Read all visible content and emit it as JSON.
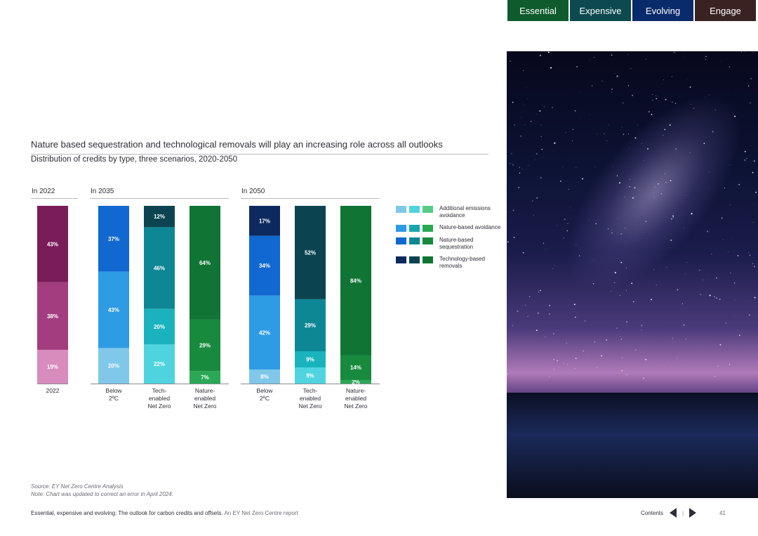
{
  "tabs": [
    "Essential",
    "Expensive",
    "Evolving",
    "Engage"
  ],
  "tab_colors": [
    "#0f5b2e",
    "#0c4a4f",
    "#0a2b6b",
    "#3a2222"
  ],
  "title": "Nature based sequestration and technological removals will play an increasing role across all outlooks",
  "subtitle": "Distribution of credits by type, three scenarios, 2020-2050",
  "footer": {
    "source": "Source: EY Net Zero Centre Analysis",
    "note": "Note: Chart was updated to correct an error in April 2024.",
    "report_title": "Essential, expensive and evolving: The outlook for carbon credits and offsets.",
    "report_subtitle": "An EY Net Zero Centre report",
    "contents": "Contents",
    "separator": "|",
    "page": "41"
  },
  "legend": [
    {
      "label": "Additional emissions avoidance",
      "colors": [
        "#7fc8ea",
        "#4fd4df",
        "#55cc88"
      ]
    },
    {
      "label": "Nature-based avoidance",
      "colors": [
        "#2e9be5",
        "#1aa6ae",
        "#2aa854"
      ]
    },
    {
      "label": "Nature-based sequestration",
      "colors": [
        "#1168d1",
        "#0e8795",
        "#178a3e"
      ]
    },
    {
      "label": "Technology-based removals",
      "colors": [
        "#0d2a60",
        "#0b4450",
        "#0f7434"
      ]
    }
  ],
  "chart_data": {
    "type": "bar",
    "stacked": true,
    "ylim": [
      0,
      100
    ],
    "groups": [
      {
        "label": "In 2022",
        "bars": [
          {
            "name": "2022",
            "segments": [
              {
                "label": "19%",
                "value": 19,
                "color": "#d88bbd"
              },
              {
                "label": "38%",
                "value": 38,
                "color": "#a43c80"
              },
              {
                "label": "43%",
                "value": 43,
                "color": "#7a1b5a"
              }
            ]
          }
        ]
      },
      {
        "label": "In 2035",
        "bars": [
          {
            "name": "Below 2ºC",
            "segments": [
              {
                "label": "20%",
                "value": 20,
                "color": "#7fc8ea"
              },
              {
                "label": "43%",
                "value": 43,
                "color": "#2e9be5"
              },
              {
                "label": "37%",
                "value": 37,
                "color": "#1168d1"
              }
            ]
          },
          {
            "name": "Tech-enabled Net Zero",
            "segments": [
              {
                "label": "22%",
                "value": 22,
                "color": "#4fd4df"
              },
              {
                "label": "20%",
                "value": 20,
                "color": "#1ab3bd"
              },
              {
                "label": "46%",
                "value": 46,
                "color": "#0e8795"
              },
              {
                "label": "12%",
                "value": 12,
                "color": "#0b4450"
              }
            ]
          },
          {
            "name": "Nature-enabled Net Zero",
            "segments": [
              {
                "label": "7%",
                "value": 7,
                "color": "#2aa854"
              },
              {
                "label": "29%",
                "value": 29,
                "color": "#178a3e"
              },
              {
                "label": "64%",
                "value": 64,
                "color": "#0f7434"
              }
            ]
          }
        ]
      },
      {
        "label": "In 2050",
        "bars": [
          {
            "name": "Below 2ºC",
            "segments": [
              {
                "label": "8%",
                "value": 8,
                "color": "#7fc8ea"
              },
              {
                "label": "42%",
                "value": 42,
                "color": "#2e9be5"
              },
              {
                "label": "34%",
                "value": 34,
                "color": "#1168d1"
              },
              {
                "label": "17%",
                "value": 17,
                "color": "#0d2a60"
              }
            ]
          },
          {
            "name": "Tech-enabled Net Zero",
            "segments": [
              {
                "label": "9%",
                "value": 9,
                "color": "#4fd4df"
              },
              {
                "label": "9%",
                "value": 9,
                "color": "#1ab3bd"
              },
              {
                "label": "29%",
                "value": 29,
                "color": "#0e8795"
              },
              {
                "label": "52%",
                "value": 52,
                "color": "#0b4450"
              }
            ]
          },
          {
            "name": "Nature-enabled Net Zero",
            "segments": [
              {
                "label": "2%",
                "value": 2,
                "color": "#2aa854"
              },
              {
                "label": "14%",
                "value": 14,
                "color": "#178a3e"
              },
              {
                "label": "84%",
                "value": 84,
                "color": "#0f7434"
              }
            ]
          }
        ]
      }
    ]
  }
}
